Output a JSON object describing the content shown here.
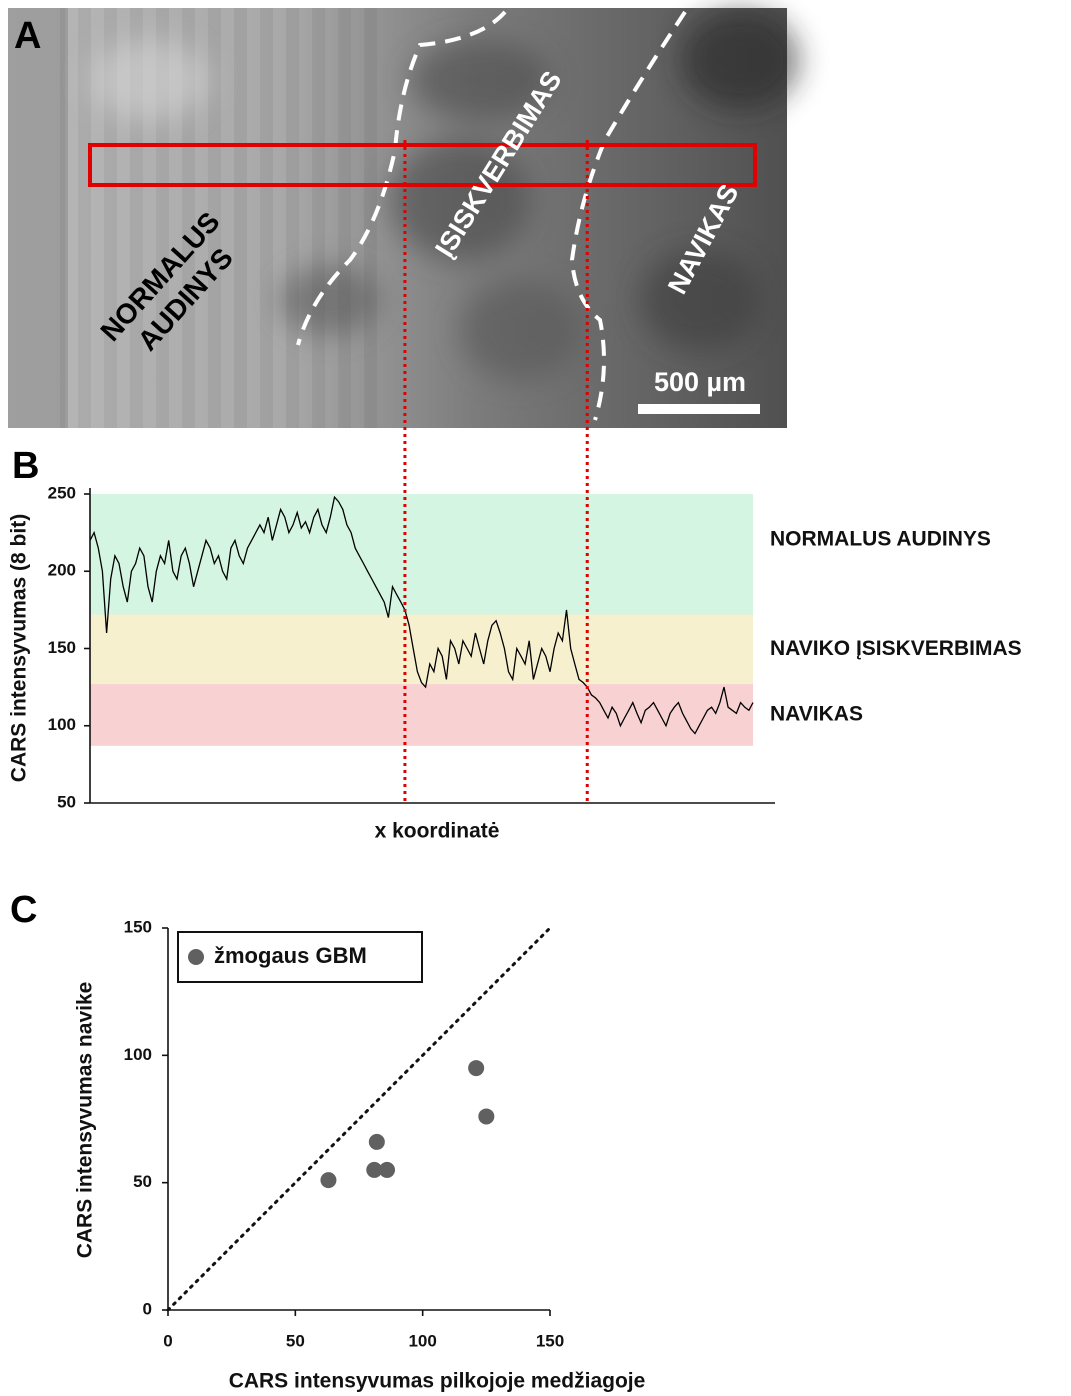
{
  "image_panel": {
    "panel_label": "A",
    "normal_tissue": [
      "NORMALUS",
      "AUDINYS"
    ],
    "infiltration": "ĮSISKVERBIMAS",
    "tumor": "NAVIKAS",
    "scale_bar": "500 µm"
  },
  "chart_data": [
    {
      "type": "line",
      "panel_label": "B",
      "y_label": "CARS intensyvumas (8 bit)",
      "x_label": "x koordinatė",
      "color": "#000000",
      "ylim": [
        50,
        250
      ],
      "yticks": [
        50,
        100,
        150,
        200,
        250
      ],
      "bands": [
        {
          "label": "NORMALUS AUDINYS",
          "from": 172,
          "to": 250,
          "color": "#d4f5e2"
        },
        {
          "label": "NAVIKO ĮSISKVERBIMAS",
          "from": 127,
          "to": 172,
          "color": "#f7f0cf"
        },
        {
          "label": "NAVIKAS",
          "from": 87,
          "to": 127,
          "color": "#f8d2d2"
        }
      ],
      "boundary_indices": [
        76,
        120
      ],
      "boundary_color": "#e00000",
      "values": [
        220,
        225,
        215,
        200,
        160,
        195,
        210,
        205,
        190,
        180,
        200,
        205,
        215,
        210,
        190,
        180,
        200,
        210,
        205,
        220,
        200,
        195,
        210,
        215,
        205,
        190,
        200,
        210,
        220,
        215,
        205,
        210,
        200,
        195,
        215,
        220,
        210,
        205,
        215,
        220,
        225,
        230,
        225,
        235,
        220,
        230,
        240,
        235,
        225,
        230,
        238,
        228,
        232,
        225,
        235,
        240,
        230,
        225,
        235,
        248,
        245,
        240,
        230,
        225,
        215,
        210,
        205,
        200,
        195,
        190,
        185,
        180,
        170,
        190,
        185,
        180,
        175,
        165,
        150,
        135,
        128,
        125,
        140,
        135,
        150,
        145,
        130,
        155,
        150,
        140,
        155,
        150,
        145,
        160,
        150,
        140,
        155,
        165,
        168,
        160,
        150,
        135,
        130,
        150,
        145,
        140,
        155,
        130,
        140,
        150,
        145,
        135,
        150,
        160,
        155,
        175,
        150,
        140,
        130,
        128,
        125,
        120,
        118,
        115,
        110,
        105,
        112,
        108,
        100,
        105,
        110,
        115,
        108,
        102,
        110,
        112,
        115,
        110,
        105,
        100,
        108,
        112,
        115,
        108,
        103,
        98,
        95,
        100,
        105,
        110,
        112,
        108,
        115,
        125,
        112,
        110,
        108,
        115,
        112,
        110,
        115
      ]
    },
    {
      "type": "scatter",
      "panel_label": "C",
      "x_label": "CARS intensyvumas pilkojoje medžiagoje",
      "y_label": "CARS intensyvumas navike",
      "xlim": [
        0,
        150
      ],
      "ylim": [
        0,
        150
      ],
      "xticks": [
        0,
        50,
        100,
        150
      ],
      "yticks": [
        0,
        50,
        100,
        150
      ],
      "identity_line": true,
      "legend": "upper left",
      "series": [
        {
          "name": "žmogaus GBM",
          "color": "#606060",
          "x": [
            63,
            81,
            82,
            86,
            121,
            125
          ],
          "values": [
            51,
            55,
            66,
            55,
            95,
            76
          ]
        }
      ]
    }
  ]
}
